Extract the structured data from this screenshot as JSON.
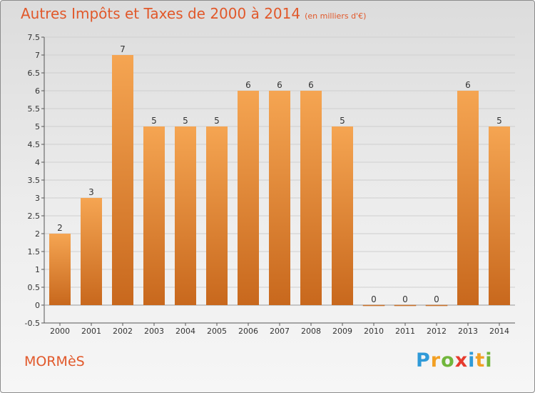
{
  "title": "Autres Impôts et Taxes de 2000 à 2014",
  "subtitle": "(en milliers d'€)",
  "commune": "MORMèS",
  "logo": {
    "text": "Proxiti",
    "letters": [
      {
        "ch": "P",
        "color": "#2f9ad8"
      },
      {
        "ch": "r",
        "color": "#f2a024"
      },
      {
        "ch": "o",
        "color": "#71b63c"
      },
      {
        "ch": "x",
        "color": "#e63b2e"
      },
      {
        "ch": "i",
        "color": "#2f9ad8"
      },
      {
        "ch": "t",
        "color": "#f2a024"
      },
      {
        "ch": "i",
        "color": "#71b63c"
      }
    ]
  },
  "colors": {
    "title": "#e1582a",
    "bar_top": "#f5a552",
    "bar_bottom": "#c8681d",
    "axis_text": "#333333",
    "grid": "#cfcfcf"
  },
  "chart_data": {
    "type": "bar",
    "categories": [
      "2000",
      "2001",
      "2002",
      "2003",
      "2004",
      "2005",
      "2006",
      "2007",
      "2008",
      "2009",
      "2010",
      "2011",
      "2012",
      "2013",
      "2014"
    ],
    "values": [
      2,
      3,
      7,
      5,
      5,
      5,
      6,
      6,
      6,
      5,
      0,
      0,
      0,
      6,
      5
    ],
    "data_labels": [
      "2",
      "3",
      "7",
      "5",
      "5",
      "5",
      "6",
      "6",
      "6",
      "5",
      "0",
      "0",
      "0",
      "6",
      "5"
    ],
    "yticks": [
      "-0.5",
      "0",
      "0.5",
      "1",
      "1.5",
      "2",
      "2.5",
      "3",
      "3.5",
      "4",
      "4.5",
      "5",
      "5.5",
      "6",
      "6.5",
      "7",
      "7.5"
    ],
    "ylim": [
      -0.5,
      7.5
    ],
    "grid": true
  }
}
